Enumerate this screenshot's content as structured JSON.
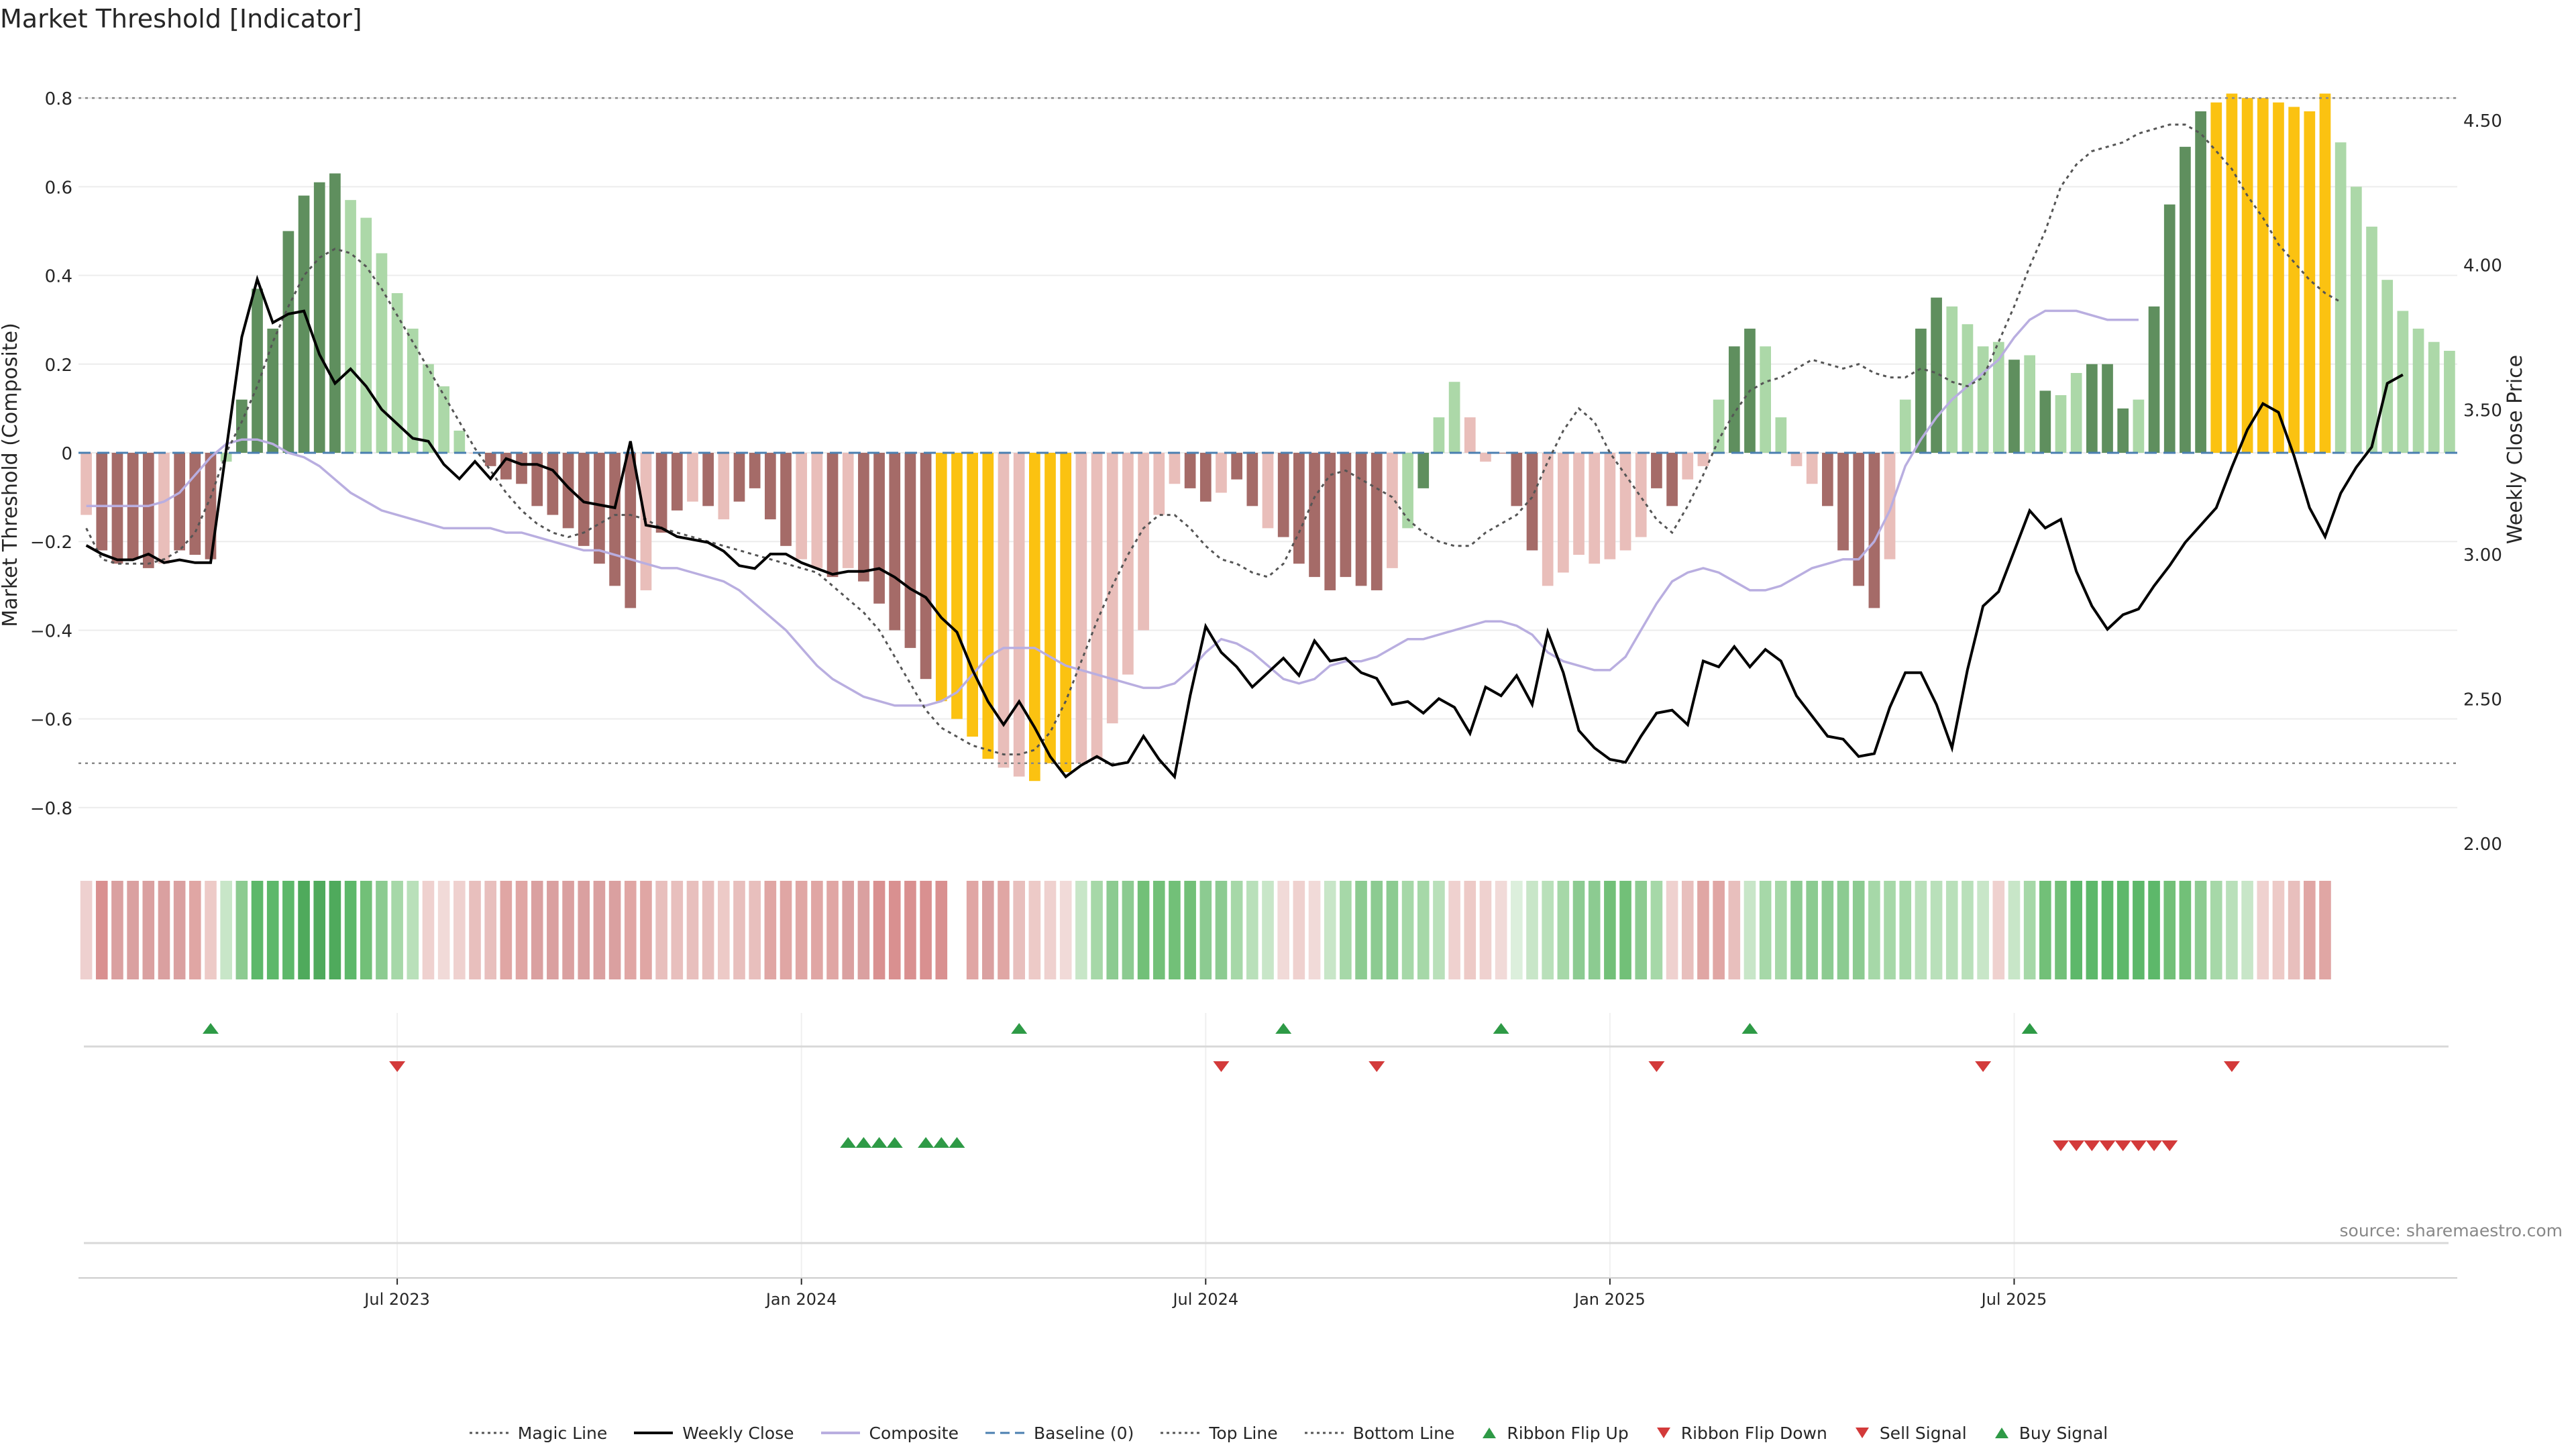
{
  "title": "Market Threshold [Indicator]",
  "source_text": "source: sharemaestro.com",
  "colors": {
    "magic": "#555555",
    "weekly": "#000000",
    "composite": "#b9aee0",
    "baseline": "#4a7fb0",
    "dotted": "#888888",
    "bar_dark_green": "#5f8f5e",
    "bar_light_green": "#acd8a8",
    "bar_dark_red": "#a56b68",
    "bar_light_red": "#e9beba",
    "bar_extreme": "#fbc211",
    "flip_up": "#2e9a46",
    "flip_down": "#d33a3a"
  },
  "legend": [
    {
      "label": "Magic Line",
      "icon": "dotted-line"
    },
    {
      "label": "Weekly Close",
      "icon": "solid-line"
    },
    {
      "label": "Composite",
      "icon": "lavender-line"
    },
    {
      "label": "Baseline (0)",
      "icon": "dashed-line"
    },
    {
      "label": "Top Line",
      "icon": "dotted-line"
    },
    {
      "label": "Bottom Line",
      "icon": "dotted-line"
    },
    {
      "label": "Ribbon Flip Up",
      "icon": "triangle-up-icon"
    },
    {
      "label": "Ribbon Flip Down",
      "icon": "triangle-down-icon"
    },
    {
      "label": "Sell Signal",
      "icon": "triangle-down-icon"
    },
    {
      "label": "Buy Signal",
      "icon": "triangle-up-icon"
    }
  ],
  "chart_data": {
    "type": "bar",
    "title": "Market Threshold [Indicator]",
    "ylabel": "Market Threshold (Composite)",
    "y2label": "Weekly Close Price",
    "ylim": [
      -0.9,
      0.9
    ],
    "y2lim": [
      1.97,
      4.73
    ],
    "yticks": [
      "0.8",
      "0.6",
      "0.4",
      "0.2",
      "0",
      "−0.2",
      "−0.4",
      "−0.6",
      "−0.8"
    ],
    "ytick_values": [
      0.8,
      0.6,
      0.4,
      0.2,
      0,
      -0.2,
      -0.4,
      -0.6,
      -0.8
    ],
    "y2ticks": [
      "4.50",
      "4.00",
      "3.50",
      "3.00",
      "2.50",
      "2.00"
    ],
    "y2tick_values": [
      4.5,
      4.0,
      3.5,
      3.0,
      2.5,
      2.0
    ],
    "xticks": [
      "Jul 2023",
      "Jan 2024",
      "Jul 2024",
      "Jan 2025",
      "Jul 2025"
    ],
    "xtick_weeks": [
      20.5,
      46.5,
      72.5,
      98.5,
      124.5
    ],
    "top_line": 0.8,
    "bottom_line": -0.7,
    "baseline": 0,
    "grid": true,
    "legend_position": "bottom",
    "composite": [
      -0.14,
      -0.22,
      -0.25,
      -0.24,
      -0.26,
      -0.25,
      -0.22,
      -0.23,
      -0.24,
      -0.02,
      0.12,
      0.37,
      0.28,
      0.5,
      0.58,
      0.61,
      0.63,
      0.57,
      0.53,
      0.45,
      0.36,
      0.28,
      0.2,
      0.15,
      0.05,
      0,
      -0.03,
      -0.06,
      -0.07,
      -0.12,
      -0.14,
      -0.17,
      -0.21,
      -0.25,
      -0.3,
      -0.35,
      -0.31,
      -0.18,
      -0.13,
      -0.11,
      -0.12,
      -0.15,
      -0.11,
      -0.08,
      -0.15,
      -0.21,
      -0.24,
      -0.26,
      -0.28,
      -0.26,
      -0.29,
      -0.34,
      -0.4,
      -0.44,
      -0.51,
      -0.56,
      -0.6,
      -0.64,
      -0.69,
      -0.71,
      -0.73,
      -0.74,
      -0.7,
      -0.72,
      -0.7,
      -0.69,
      -0.61,
      -0.5,
      -0.4,
      -0.14,
      -0.07,
      -0.08,
      -0.11,
      -0.09,
      -0.06,
      -0.12,
      -0.17,
      -0.19,
      -0.25,
      -0.28,
      -0.31,
      -0.28,
      -0.3,
      -0.31,
      -0.26,
      -0.17,
      -0.08,
      0.08,
      0.16,
      0.08,
      -0.02,
      0,
      -0.12,
      -0.22,
      -0.3,
      -0.27,
      -0.23,
      -0.25,
      -0.24,
      -0.22,
      -0.19,
      -0.08,
      -0.12,
      -0.06,
      -0.03,
      0.12,
      0.24,
      0.28,
      0.24,
      0.08,
      -0.03,
      -0.07,
      -0.12,
      -0.22,
      -0.3,
      -0.35,
      -0.24,
      0.12,
      0.28,
      0.35,
      0.33,
      0.29,
      0.24,
      0.25,
      0.21,
      0.22,
      0.14,
      0.13,
      0.18,
      0.2,
      0.2,
      0.1,
      0.12,
      0.33,
      0.56,
      0.69,
      0.77,
      0.79,
      0.81,
      0.8,
      0.8,
      0.79,
      0.78,
      0.77,
      0.81,
      0.7,
      0.6,
      0.51,
      0.39,
      0.32,
      0.28,
      0.25,
      0.23
    ],
    "bar_colors": [
      "LR",
      "DR",
      "DR",
      "DR",
      "DR",
      "LR",
      "DR",
      "DR",
      "DR",
      "LG",
      "DG",
      "DG",
      "DG",
      "DG",
      "DG",
      "DG",
      "DG",
      "LG",
      "LG",
      "LG",
      "LG",
      "LG",
      "LG",
      "LG",
      "LG",
      "LR",
      "DR",
      "DR",
      "DR",
      "DR",
      "DR",
      "DR",
      "DR",
      "DR",
      "DR",
      "DR",
      "LR",
      "DR",
      "DR",
      "LR",
      "DR",
      "LR",
      "DR",
      "DR",
      "DR",
      "DR",
      "LR",
      "LR",
      "DR",
      "LR",
      "DR",
      "DR",
      "DR",
      "DR",
      "DR",
      "Y",
      "Y",
      "Y",
      "Y",
      "LR",
      "LR",
      "Y",
      "Y",
      "Y",
      "LR",
      "LR",
      "LR",
      "LR",
      "LR",
      "LR",
      "LR",
      "DR",
      "DR",
      "LR",
      "DR",
      "DR",
      "LR",
      "DR",
      "DR",
      "DR",
      "DR",
      "DR",
      "DR",
      "DR",
      "LR",
      "LG",
      "DG",
      "LG",
      "LG",
      "LR",
      "LR",
      "DR",
      "DR",
      "DR",
      "LR",
      "LR",
      "LR",
      "LR",
      "LR",
      "LR",
      "LR",
      "DR",
      "DR",
      "LR",
      "LR",
      "LG",
      "DG",
      "DG",
      "LG",
      "LG",
      "LR",
      "LR",
      "DR",
      "DR",
      "DR",
      "DR",
      "LR",
      "LG",
      "DG",
      "DG",
      "LG",
      "LG",
      "LG",
      "LG",
      "DG",
      "LG",
      "DG",
      "LG",
      "LG",
      "DG",
      "DG",
      "DG",
      "LG",
      "DG",
      "DG",
      "DG",
      "DG",
      "Y",
      "Y",
      "Y",
      "Y",
      "Y",
      "Y",
      "Y",
      "Y",
      "LG",
      "LG",
      "LG",
      "LG",
      "LG",
      "LG",
      "LG",
      "LG",
      "LG"
    ],
    "magic_line": [
      -0.17,
      -0.24,
      -0.25,
      -0.25,
      -0.25,
      -0.24,
      -0.22,
      -0.18,
      -0.1,
      0.0,
      0.07,
      0.15,
      0.25,
      0.33,
      0.4,
      0.44,
      0.46,
      0.45,
      0.42,
      0.37,
      0.31,
      0.25,
      0.19,
      0.13,
      0.07,
      0.01,
      -0.04,
      -0.09,
      -0.13,
      -0.16,
      -0.18,
      -0.19,
      -0.18,
      -0.16,
      -0.14,
      -0.14,
      -0.15,
      -0.17,
      -0.18,
      -0.19,
      -0.2,
      -0.21,
      -0.22,
      -0.23,
      -0.24,
      -0.25,
      -0.26,
      -0.27,
      -0.3,
      -0.33,
      -0.36,
      -0.4,
      -0.46,
      -0.52,
      -0.58,
      -0.62,
      -0.64,
      -0.66,
      -0.67,
      -0.68,
      -0.68,
      -0.67,
      -0.63,
      -0.56,
      -0.47,
      -0.38,
      -0.3,
      -0.23,
      -0.17,
      -0.14,
      -0.14,
      -0.17,
      -0.21,
      -0.24,
      -0.25,
      -0.27,
      -0.28,
      -0.25,
      -0.18,
      -0.1,
      -0.05,
      -0.04,
      -0.06,
      -0.08,
      -0.1,
      -0.15,
      -0.18,
      -0.2,
      -0.21,
      -0.21,
      -0.18,
      -0.16,
      -0.14,
      -0.1,
      -0.02,
      0.05,
      0.1,
      0.07,
      0.0,
      -0.05,
      -0.1,
      -0.15,
      -0.18,
      -0.12,
      -0.05,
      0.03,
      0.09,
      0.14,
      0.16,
      0.17,
      0.19,
      0.21,
      0.2,
      0.19,
      0.2,
      0.18,
      0.17,
      0.17,
      0.19,
      0.18,
      0.16,
      0.15,
      0.17,
      0.25,
      0.33,
      0.42,
      0.5,
      0.6,
      0.65,
      0.68,
      0.69,
      0.7,
      0.72,
      0.73,
      0.74,
      0.74,
      0.72,
      0.68,
      0.64,
      0.58,
      0.53,
      0.47,
      0.43,
      0.39,
      0.36,
      0.34
    ],
    "composite_line": [
      -0.12,
      -0.12,
      -0.12,
      -0.12,
      -0.12,
      -0.11,
      -0.09,
      -0.05,
      -0.01,
      0.02,
      0.03,
      0.03,
      0.02,
      0.0,
      -0.01,
      -0.03,
      -0.06,
      -0.09,
      -0.11,
      -0.13,
      -0.14,
      -0.15,
      -0.16,
      -0.17,
      -0.17,
      -0.17,
      -0.17,
      -0.18,
      -0.18,
      -0.19,
      -0.2,
      -0.21,
      -0.22,
      -0.22,
      -0.23,
      -0.24,
      -0.25,
      -0.26,
      -0.26,
      -0.27,
      -0.28,
      -0.29,
      -0.31,
      -0.34,
      -0.37,
      -0.4,
      -0.44,
      -0.48,
      -0.51,
      -0.53,
      -0.55,
      -0.56,
      -0.57,
      -0.57,
      -0.57,
      -0.56,
      -0.54,
      -0.5,
      -0.46,
      -0.44,
      -0.44,
      -0.44,
      -0.46,
      -0.48,
      -0.49,
      -0.5,
      -0.51,
      -0.52,
      -0.53,
      -0.53,
      -0.52,
      -0.49,
      -0.45,
      -0.42,
      -0.43,
      -0.45,
      -0.48,
      -0.51,
      -0.52,
      -0.51,
      -0.48,
      -0.47,
      -0.47,
      -0.46,
      -0.44,
      -0.42,
      -0.42,
      -0.41,
      -0.4,
      -0.39,
      -0.38,
      -0.38,
      -0.39,
      -0.41,
      -0.45,
      -0.47,
      -0.48,
      -0.49,
      -0.49,
      -0.46,
      -0.4,
      -0.34,
      -0.29,
      -0.27,
      -0.26,
      -0.27,
      -0.29,
      -0.31,
      -0.31,
      -0.3,
      -0.28,
      -0.26,
      -0.25,
      -0.24,
      -0.24,
      -0.2,
      -0.13,
      -0.03,
      0.03,
      0.08,
      0.12,
      0.15,
      0.18,
      0.21,
      0.26,
      0.3,
      0.32,
      0.32,
      0.32,
      0.31,
      0.3,
      0.3,
      0.3
    ],
    "weekly_close": [
      3.03,
      3.0,
      2.98,
      2.98,
      3.0,
      2.97,
      2.98,
      2.97,
      2.97,
      3.36,
      3.75,
      3.95,
      3.8,
      3.83,
      3.84,
      3.69,
      3.59,
      3.64,
      3.58,
      3.5,
      3.45,
      3.4,
      3.39,
      3.31,
      3.26,
      3.32,
      3.26,
      3.33,
      3.31,
      3.31,
      3.29,
      3.23,
      3.18,
      3.17,
      3.16,
      3.39,
      3.1,
      3.09,
      3.06,
      3.05,
      3.04,
      3.01,
      2.96,
      2.95,
      3.0,
      3.0,
      2.97,
      2.95,
      2.93,
      2.94,
      2.94,
      2.95,
      2.92,
      2.88,
      2.85,
      2.78,
      2.73,
      2.6,
      2.49,
      2.41,
      2.49,
      2.4,
      2.3,
      2.23,
      2.27,
      2.3,
      2.27,
      2.28,
      2.37,
      2.29,
      2.23,
      2.51,
      2.75,
      2.66,
      2.61,
      2.54,
      2.59,
      2.64,
      2.58,
      2.7,
      2.63,
      2.64,
      2.59,
      2.57,
      2.48,
      2.49,
      2.45,
      2.5,
      2.47,
      2.38,
      2.54,
      2.51,
      2.58,
      2.48,
      2.73,
      2.59,
      2.39,
      2.33,
      2.29,
      2.28,
      2.37,
      2.45,
      2.46,
      2.41,
      2.63,
      2.61,
      2.68,
      2.61,
      2.67,
      2.63,
      2.51,
      2.44,
      2.37,
      2.36,
      2.3,
      2.31,
      2.47,
      2.59,
      2.59,
      2.48,
      2.33,
      2.6,
      2.82,
      2.87,
      3.01,
      3.15,
      3.09,
      3.12,
      2.94,
      2.82,
      2.74,
      2.79,
      2.81,
      2.89,
      2.96,
      3.04,
      3.1,
      3.16,
      3.3,
      3.43,
      3.52,
      3.49,
      3.34,
      3.16,
      3.06,
      3.21,
      3.3,
      3.37,
      3.59,
      3.62
    ],
    "ribbon_colors": [
      "#eed0cf",
      "#d99090",
      "#daa0a0",
      "#daa0a0",
      "#daa0a0",
      "#daa0a0",
      "#daa0a0",
      "#e0a6a4",
      "#edcac7",
      "#c8e6c8",
      "#8ccb91",
      "#5db86a",
      "#5db86a",
      "#5db86a",
      "#4faa5c",
      "#4faa5c",
      "#4faa5c",
      "#5db86a",
      "#72c078",
      "#8ccb91",
      "#a6d8a8",
      "#b9e0ba",
      "#efd1cf",
      "#f1dad8",
      "#efd1cf",
      "#e8bfbd",
      "#e8bfbd",
      "#e0a6a4",
      "#e0a6a4",
      "#daa0a0",
      "#daa0a0",
      "#daa0a0",
      "#daa0a0",
      "#daa0a0",
      "#daa0a0",
      "#e0a6a4",
      "#e0a6a4",
      "#e8bfbd",
      "#e8bfbd",
      "#e8bfbd",
      "#e8bfbd",
      "#edcac7",
      "#e8bfbd",
      "#e8bfbd",
      "#e0a6a4",
      "#e0a6a4",
      "#e0a6a4",
      "#e0a6a4",
      "#e0a6a4",
      "#daa0a0",
      "#daa0a0",
      "#d99090",
      "#d99090",
      "#d99090",
      "#d99090",
      "#d99090",
      "#ffffff",
      "#e0a6a4",
      "#daa0a0",
      "#e0a6a4",
      "#e8bfbd",
      "#edcac7",
      "#efd1cf",
      "#f1dad8",
      "#c8e6c8",
      "#a6d8a8",
      "#8ccb91",
      "#8ccb91",
      "#72c078",
      "#72c078",
      "#72c078",
      "#72c078",
      "#8ccb91",
      "#8ccb91",
      "#a6d8a8",
      "#b9e0ba",
      "#c8e6c8",
      "#f1dad8",
      "#efd1cf",
      "#f1dad8",
      "#c8e6c8",
      "#a6d8a8",
      "#8ccb91",
      "#8ccb91",
      "#8ccb91",
      "#a6d8a8",
      "#a6d8a8",
      "#b9e0ba",
      "#efd1cf",
      "#edcac7",
      "#efd1cf",
      "#f1dad8",
      "#dcefdc",
      "#c8e6c8",
      "#b9e0ba",
      "#a6d8a8",
      "#8ccb91",
      "#8ccb91",
      "#72c078",
      "#72c078",
      "#8ccb91",
      "#a6d8a8",
      "#efd1cf",
      "#e8bfbd",
      "#e0a6a4",
      "#e0a6a4",
      "#e8bfbd",
      "#c8e6c8",
      "#a6d8a8",
      "#a6d8a8",
      "#8ccb91",
      "#8ccb91",
      "#8ccb91",
      "#8ccb91",
      "#8ccb91",
      "#a6d8a8",
      "#a6d8a8",
      "#a6d8a8",
      "#b9e0ba",
      "#b9e0ba",
      "#b9e0ba",
      "#b9e0ba",
      "#c8e6c8",
      "#efd1cf",
      "#c8e6c8",
      "#a6d8a8",
      "#72c078",
      "#72c078",
      "#5db86a",
      "#5db86a",
      "#5db86a",
      "#5db86a",
      "#5db86a",
      "#5db86a",
      "#72c078",
      "#72c078",
      "#8ccb91",
      "#a6d8a8",
      "#b9e0ba",
      "#c8e6c8",
      "#efd1cf",
      "#edcac7",
      "#e8bfbd",
      "#e0a6a4",
      "#e0a6a4"
    ],
    "ribbon_flip_up_weeks": [
      8,
      60,
      77,
      91,
      107,
      125
    ],
    "ribbon_flip_down_weeks": [
      20,
      73,
      83,
      101,
      122,
      138
    ],
    "buy_signal_weeks": [
      49,
      50,
      51,
      52,
      54,
      55,
      56
    ],
    "sell_signal_weeks": [
      127,
      128,
      129,
      130,
      131,
      132,
      133,
      134
    ]
  }
}
